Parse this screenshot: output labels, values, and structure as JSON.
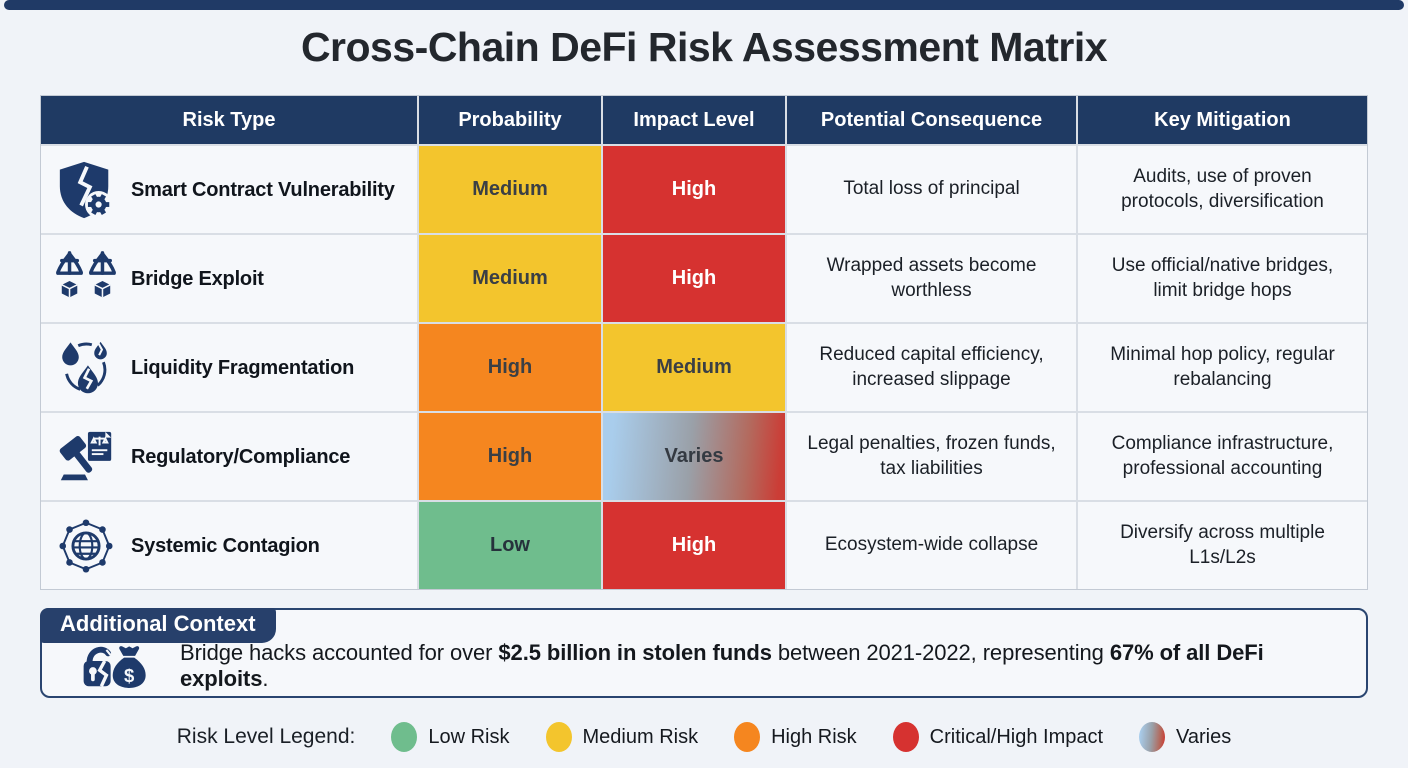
{
  "page": {
    "title": "Cross-Chain DeFi Risk Assessment Matrix"
  },
  "colors": {
    "navy": "#1f3a63",
    "low_risk": "#6fbd8d",
    "medium_risk": "#f3c52d",
    "high_risk": "#f5861f",
    "critical_high_impact": "#d63230",
    "varies_gradient": [
      "#a9cdec",
      "#9aa0a8",
      "#cb3d36"
    ]
  },
  "chart_data": {
    "type": "table",
    "title": "Cross-Chain DeFi Risk Assessment Matrix",
    "headers": [
      "Risk Type",
      "Probability",
      "Impact Level",
      "Potential Consequence",
      "Key Mitigation"
    ],
    "rows": [
      [
        "Smart Contract Vulnerability",
        "Medium",
        "High",
        "Total loss of principal",
        "Audits, use of proven protocols, diversification"
      ],
      [
        "Bridge Exploit",
        "Medium",
        "High",
        "Wrapped assets become worthless",
        "Use official/native bridges, limit bridge hops"
      ],
      [
        "Liquidity Fragmentation",
        "High",
        "Medium",
        "Reduced capital efficiency, increased slippage",
        "Minimal hop policy, regular rebalancing"
      ],
      [
        "Regulatory/Compliance",
        "High",
        "Varies",
        "Legal penalties, frozen funds, tax liabilities",
        "Compliance infrastructure, professional accounting"
      ],
      [
        "Systemic Contagion",
        "Low",
        "High",
        "Ecosystem-wide collapse",
        "Diversify across multiple L1s/L2s"
      ]
    ]
  },
  "table": {
    "headers": [
      "Risk Type",
      "Probability",
      "Impact Level",
      "Potential Consequence",
      "Key Mitigation"
    ],
    "rows": [
      {
        "icon": "shield-crack-gear-icon",
        "risk_type": "Smart Contract Vulnerability",
        "probability": {
          "label": "Medium",
          "level": "medium"
        },
        "impact": {
          "label": "High",
          "level": "critical"
        },
        "consequence": "Total loss of principal",
        "mitigation": "Audits, use of proven protocols, diversification"
      },
      {
        "icon": "broken-bridge-icon",
        "risk_type": "Bridge Exploit",
        "probability": {
          "label": "Medium",
          "level": "medium"
        },
        "impact": {
          "label": "High",
          "level": "critical"
        },
        "consequence": "Wrapped assets become worthless",
        "mitigation": "Use official/native bridges, limit bridge hops"
      },
      {
        "icon": "liquidity-droplets-icon",
        "risk_type": "Liquidity Fragmentation",
        "probability": {
          "label": "High",
          "level": "high"
        },
        "impact": {
          "label": "Medium",
          "level": "medium"
        },
        "consequence": "Reduced capital efficiency, increased slippage",
        "mitigation": "Minimal hop policy, regular rebalancing"
      },
      {
        "icon": "gavel-scales-icon",
        "risk_type": "Regulatory/Compliance",
        "probability": {
          "label": "High",
          "level": "high"
        },
        "impact": {
          "label": "Varies",
          "level": "varies"
        },
        "consequence": "Legal penalties, frozen funds, tax liabilities",
        "mitigation": "Compliance infrastructure, professional accounting"
      },
      {
        "icon": "network-globe-icon",
        "risk_type": "Systemic Contagion",
        "probability": {
          "label": "Low",
          "level": "low"
        },
        "impact": {
          "label": "High",
          "level": "critical"
        },
        "consequence": "Ecosystem-wide collapse",
        "mitigation": "Diversify across multiple L1s/L2s"
      }
    ]
  },
  "context": {
    "tab_label": "Additional Context",
    "icon": "broken-lock-money-bag-icon",
    "segments": [
      {
        "text": "Bridge hacks accounted for over ",
        "bold": false
      },
      {
        "text": "$2.5 billion in stolen funds",
        "bold": true
      },
      {
        "text": " between 2021-2022, representing ",
        "bold": false
      },
      {
        "text": "67% of all DeFi exploits",
        "bold": true
      },
      {
        "text": ".",
        "bold": false
      }
    ]
  },
  "legend": {
    "label": "Risk Level Legend:",
    "items": [
      {
        "label": "Low Risk",
        "level": "low"
      },
      {
        "label": "Medium Risk",
        "level": "medium"
      },
      {
        "label": "High Risk",
        "level": "high"
      },
      {
        "label": "Critical/High Impact",
        "level": "critical"
      },
      {
        "label": "Varies",
        "level": "varies"
      }
    ]
  }
}
